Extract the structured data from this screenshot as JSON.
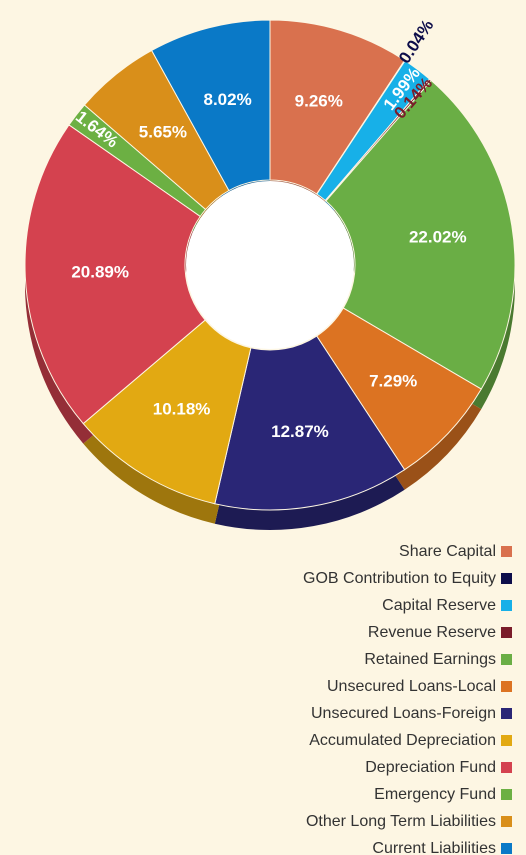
{
  "chart_data": {
    "type": "pie",
    "categories": [
      "Share Capital",
      "GOB Contribution to Equity",
      "Capital Reserve",
      "Revenue Reserve",
      "Retained Earnings",
      "Unsecured Loans-Local",
      "Unsecured Loans-Foreign",
      "Accumulated Depreciation",
      "Depreciation Fund",
      "Emergency Fund",
      "Other Long Term Liabilities",
      "Current Liabilities"
    ],
    "values": [
      9.26,
      0.04,
      1.99,
      0.14,
      22.02,
      7.29,
      12.87,
      10.18,
      20.89,
      1.64,
      5.65,
      8.02
    ],
    "value_labels": [
      "9.26%",
      "0.04%",
      "1.99%",
      "0.14%",
      "22.02%",
      "7.29%",
      "12.87%",
      "10.18%",
      "20.89%",
      "1.64%",
      "5.65%",
      "8.02%"
    ],
    "colors": [
      "#d9714e",
      "#0d0d4a",
      "#17b0e8",
      "#7a1c2a",
      "#6aae45",
      "#dc7322",
      "#2a2676",
      "#e2a912",
      "#d4424f",
      "#6cb043",
      "#d98f1a",
      "#0a79c7"
    ],
    "legend": "bottom-right"
  }
}
